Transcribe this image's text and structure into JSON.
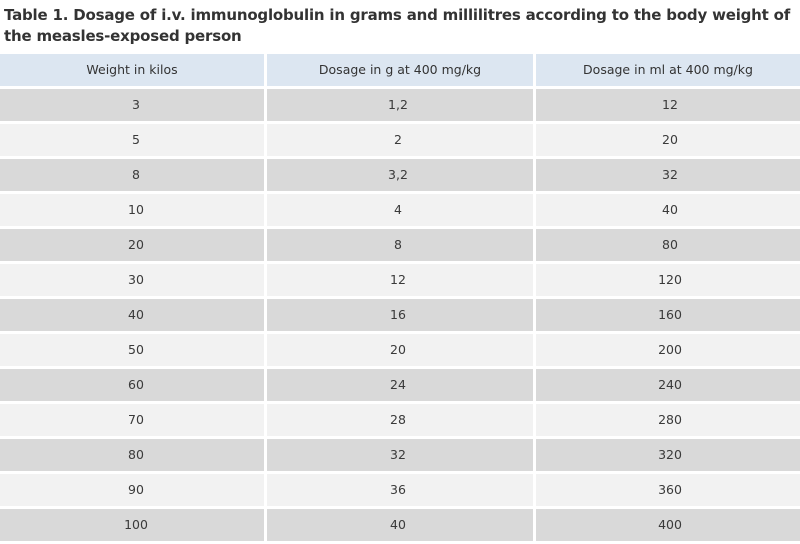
{
  "title": "Table 1. Dosage of i.v. immunoglobulin in grams and millilitres according to the body weight of the measles-exposed person",
  "columns": [
    "Weight in kilos",
    "Dosage in g at 400 mg/kg",
    "Dosage in ml at 400 mg/kg"
  ],
  "rows": [
    [
      "3",
      "1,2",
      "12"
    ],
    [
      "5",
      "2",
      "20"
    ],
    [
      "8",
      "3,2",
      "32"
    ],
    [
      "10",
      "4",
      "40"
    ],
    [
      "20",
      "8",
      "80"
    ],
    [
      "30",
      "12",
      "120"
    ],
    [
      "40",
      "16",
      "160"
    ],
    [
      "50",
      "20",
      "200"
    ],
    [
      "60",
      "24",
      "240"
    ],
    [
      "70",
      "28",
      "280"
    ],
    [
      "80",
      "32",
      "320"
    ],
    [
      "90",
      "36",
      "360"
    ],
    [
      "100",
      "40",
      "400"
    ]
  ],
  "colors": {
    "header_bg": "#dce6f1",
    "row_dark": "#d9d9d9",
    "row_light": "#f2f2f2",
    "text": "#333333"
  }
}
